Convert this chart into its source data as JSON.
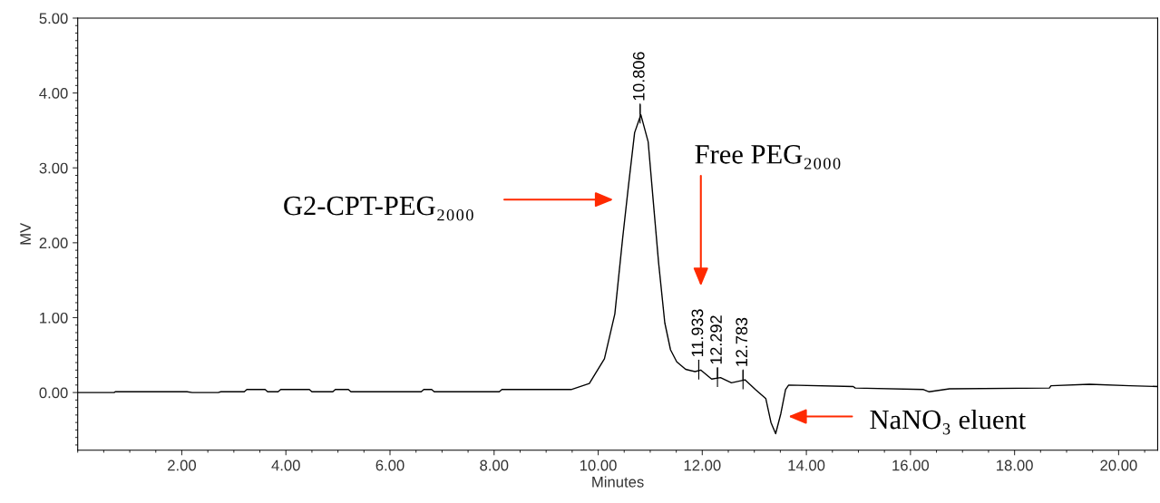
{
  "chart_data": {
    "type": "line",
    "xlabel": "Minutes",
    "ylabel": "MV",
    "xlim": [
      0,
      20.75
    ],
    "ylim": [
      -0.77,
      5
    ],
    "xticks": [
      {
        "value": 2,
        "label": "2.00"
      },
      {
        "value": 4,
        "label": "4.00"
      },
      {
        "value": 6,
        "label": "6.00"
      },
      {
        "value": 8,
        "label": "8.00"
      },
      {
        "value": 10,
        "label": "10.00"
      },
      {
        "value": 12,
        "label": "12.00"
      },
      {
        "value": 14,
        "label": "14.00"
      },
      {
        "value": 16,
        "label": "16.00"
      },
      {
        "value": 18,
        "label": "18.00"
      },
      {
        "value": 20,
        "label": "20.00"
      }
    ],
    "yticks": [
      {
        "value": 0,
        "label": "0.00"
      },
      {
        "value": 1,
        "label": "1.00"
      },
      {
        "value": 2,
        "label": "2.00"
      },
      {
        "value": 3,
        "label": "3.00"
      },
      {
        "value": 4,
        "label": "4.00"
      },
      {
        "value": 5,
        "label": "5.00"
      }
    ],
    "grid": false,
    "legend": false,
    "marker": "none",
    "line_style": "solid",
    "series": [
      {
        "color": "#000000",
        "x": [
          0,
          0.7,
          0.72,
          2.1,
          2.2,
          2.7,
          2.75,
          3.2,
          3.25,
          3.6,
          3.65,
          3.85,
          3.9,
          4.45,
          4.5,
          4.9,
          4.95,
          5.2,
          5.25,
          6.6,
          6.65,
          6.8,
          6.85,
          8.1,
          8.15,
          9.48,
          9.83,
          10.12,
          10.32,
          10.47,
          10.58,
          10.7,
          10.82,
          10.96,
          11.07,
          11.16,
          11.28,
          11.39,
          11.51,
          11.68,
          11.86,
          11.97,
          12.18,
          12.35,
          12.56,
          12.82,
          13.02,
          13.22,
          13.32,
          13.41,
          13.51,
          13.6,
          13.66,
          14.9,
          14.94,
          16.25,
          16.36,
          16.75,
          18.67,
          18.7,
          19.44,
          20.22,
          20.75
        ],
        "values": [
          0,
          0,
          0.01,
          0.01,
          0,
          0,
          0.01,
          0.01,
          0.04,
          0.04,
          0.01,
          0.01,
          0.04,
          0.04,
          0.01,
          0.01,
          0.04,
          0.04,
          0.01,
          0.01,
          0.04,
          0.04,
          0.01,
          0.01,
          0.04,
          0.04,
          0.12,
          0.45,
          1.05,
          2.06,
          2.75,
          3.47,
          3.71,
          3.35,
          2.46,
          1.74,
          0.93,
          0.57,
          0.41,
          0.31,
          0.28,
          0.3,
          0.18,
          0.2,
          0.13,
          0.17,
          0.04,
          -0.08,
          -0.4,
          -0.55,
          -0.28,
          0.04,
          0.1,
          0.08,
          0.06,
          0.04,
          0.01,
          0.05,
          0.06,
          0.09,
          0.11,
          0.09,
          0.08
        ]
      }
    ],
    "annotations": [
      {
        "text": "10.806",
        "x": 10.806,
        "y": 3.72
      },
      {
        "text": "11.933",
        "x": 11.933,
        "y": 0.3
      },
      {
        "text": "12.292",
        "x": 12.292,
        "y": 0.2
      },
      {
        "text": "12.783",
        "x": 12.783,
        "y": 0.17
      },
      "G2-CPT-PEG₂₀₀₀",
      "Free PEG₂₀₀₀",
      "NaNO₃ eluent"
    ]
  }
}
